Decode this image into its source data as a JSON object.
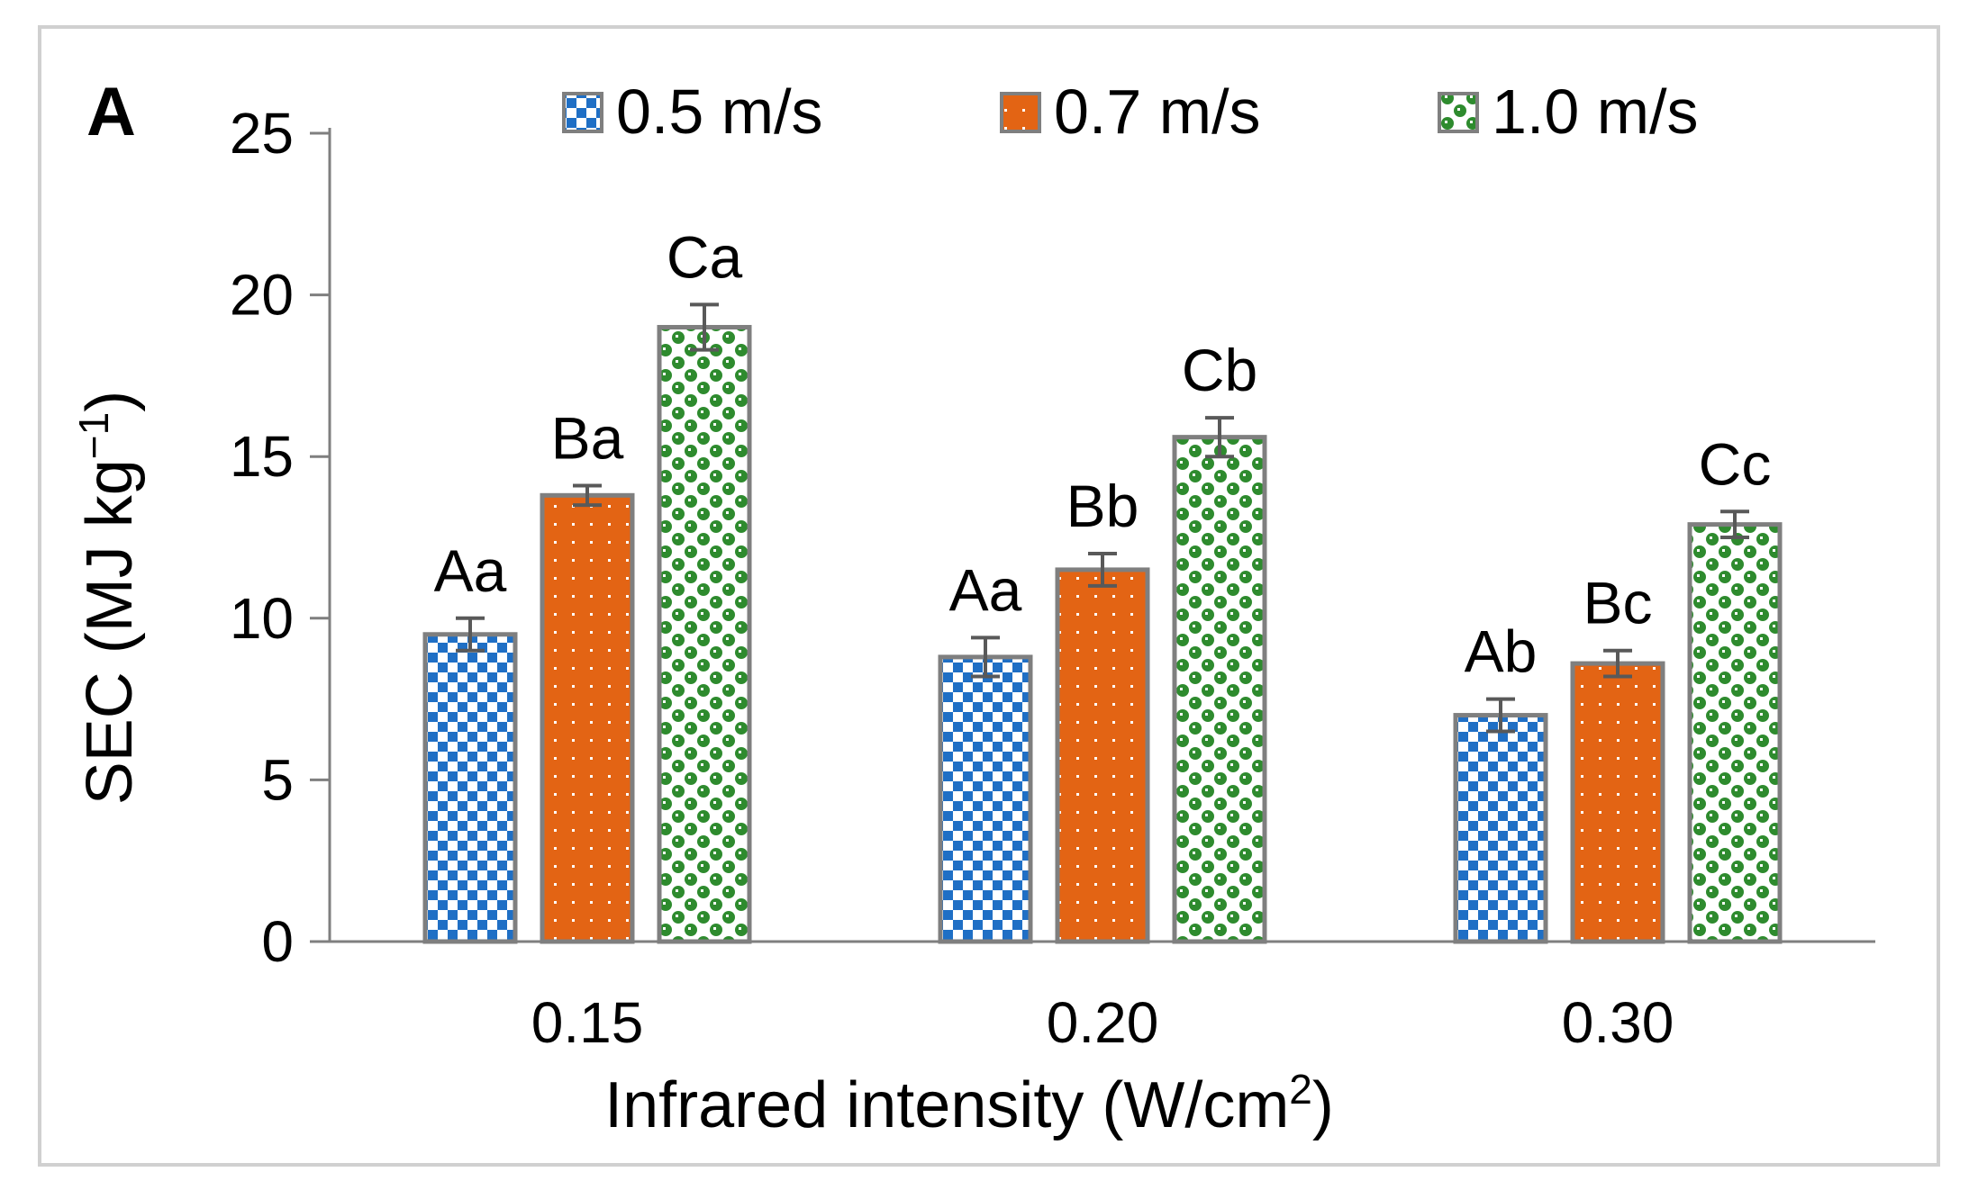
{
  "panel_label": "A",
  "colors": {
    "series_0": "#1f6fc5",
    "series_1": "#e36414",
    "series_2": "#2e8b2e",
    "bar_border": "#7f7f7f",
    "error_bar": "#595959",
    "axis": "#7f7f7f"
  },
  "chart_data": {
    "type": "bar",
    "title": "",
    "xlabel": "Infrared intensity (W/cm",
    "xlabel_sup": "2",
    "xlabel_end": ")",
    "ylabel": "SEC (MJ kg",
    "ylabel_sup": "−1",
    "ylabel_end": ")",
    "categories": [
      "0.15",
      "0.20",
      "0.30"
    ],
    "ylim": [
      0,
      25
    ],
    "yticks": [
      "0",
      "5",
      "10",
      "15",
      "20",
      "25"
    ],
    "legend_position": "top",
    "series": [
      {
        "name": "0.5 m/s",
        "values": [
          9.5,
          8.8,
          7.0
        ],
        "errors": [
          0.5,
          0.6,
          0.5
        ],
        "labels": [
          "Aa",
          "Aa",
          "Ab"
        ],
        "pattern": "checker"
      },
      {
        "name": "0.7 m/s",
        "values": [
          13.8,
          11.5,
          8.6
        ],
        "errors": [
          0.3,
          0.5,
          0.4
        ],
        "labels": [
          "Ba",
          "Bb",
          "Bc"
        ],
        "pattern": "dots"
      },
      {
        "name": "1.0 m/s",
        "values": [
          19.0,
          15.6,
          12.9
        ],
        "errors": [
          0.7,
          0.6,
          0.4
        ],
        "labels": [
          "Ca",
          "Cb",
          "Cc"
        ],
        "pattern": "sphere"
      }
    ]
  }
}
